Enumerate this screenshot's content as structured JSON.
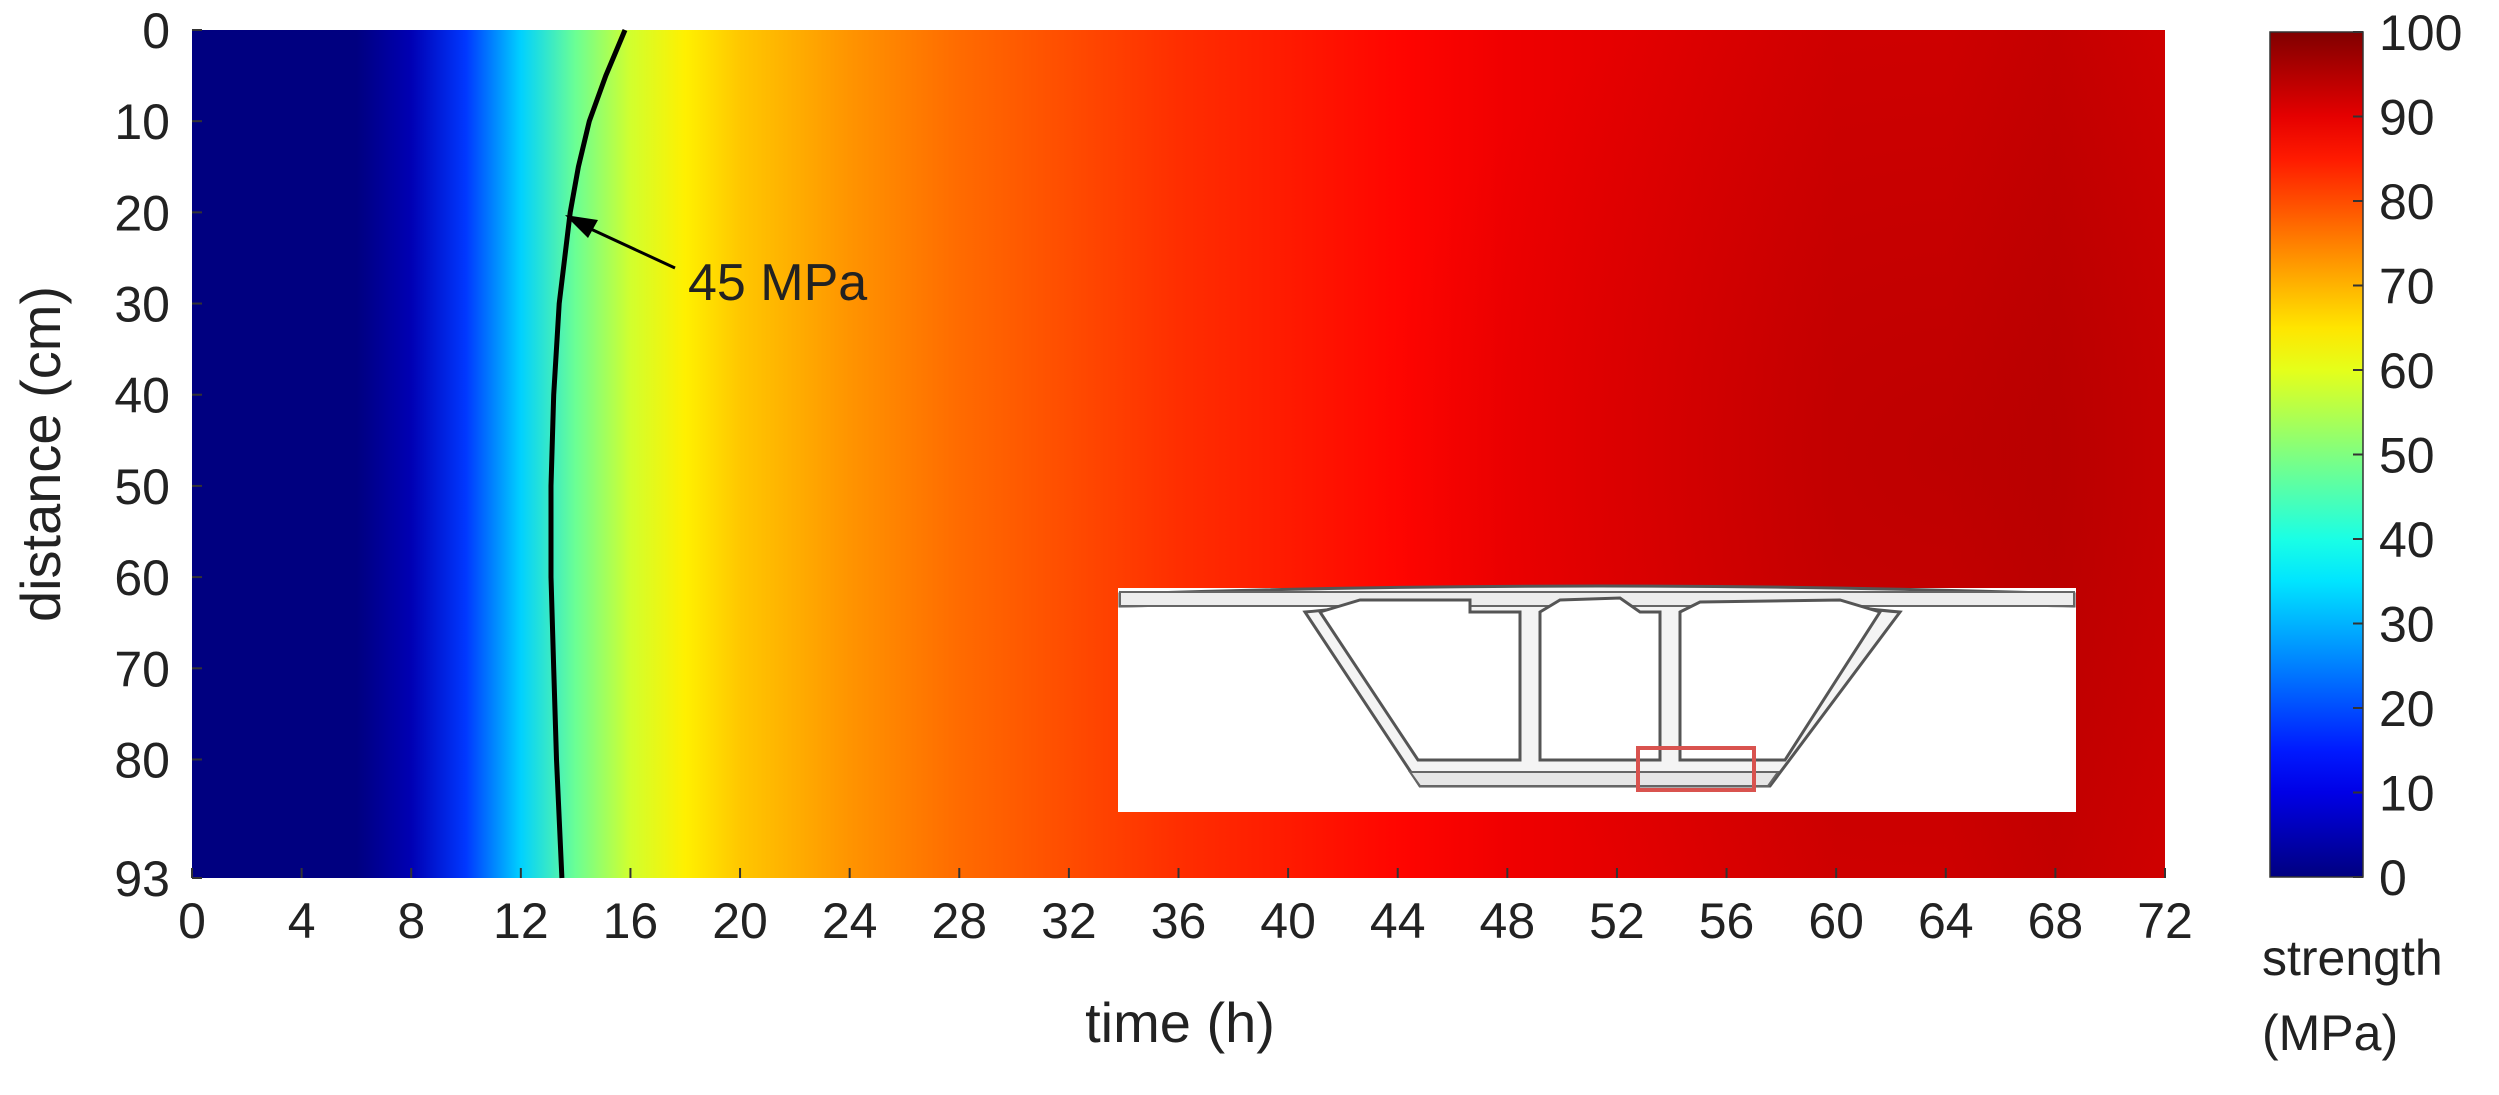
{
  "chart_data": {
    "type": "heatmap",
    "title": "",
    "xlabel": "time (h)",
    "ylabel": "distance (cm)",
    "xlim": [
      0,
      72
    ],
    "ylim": [
      0,
      93
    ],
    "y_reversed": true,
    "x_ticks": [
      0,
      4,
      8,
      12,
      16,
      20,
      24,
      28,
      32,
      36,
      40,
      44,
      48,
      52,
      56,
      60,
      64,
      68,
      72
    ],
    "y_ticks": [
      0,
      10,
      20,
      30,
      40,
      50,
      60,
      70,
      80,
      93
    ],
    "colorbar": {
      "label_line1": "strength",
      "label_line2": "(MPa)",
      "min": 0,
      "max": 100,
      "ticks": [
        0,
        10,
        20,
        30,
        40,
        50,
        60,
        70,
        80,
        90,
        100
      ],
      "colormap": "jet"
    },
    "strength_profile": {
      "time_h": [
        0,
        6,
        8,
        10,
        12,
        14,
        16,
        18,
        20,
        24,
        28,
        32,
        36,
        40,
        44,
        48,
        52,
        56,
        60,
        64,
        68,
        72
      ],
      "strength_mpa_mid_depth": [
        0,
        0,
        5,
        18,
        33,
        48,
        58,
        64,
        68,
        73,
        77,
        80,
        83,
        85,
        87,
        89,
        90,
        91,
        92,
        92,
        93,
        92
      ]
    },
    "contour_45mpa": {
      "label": "45 MPa",
      "distance_cm": [
        0,
        5,
        10,
        15,
        20,
        25,
        30,
        40,
        50,
        60,
        70,
        80,
        93
      ],
      "time_h": [
        15.8,
        15.1,
        14.5,
        14.1,
        13.8,
        13.6,
        13.4,
        13.2,
        13.1,
        13.1,
        13.2,
        13.3,
        13.5
      ],
      "arrow_target": {
        "time_h": 13.8,
        "distance_cm": 20
      }
    },
    "inset": {
      "name": "box-girder-cross-section",
      "highlight_color": "#d9534f"
    }
  }
}
